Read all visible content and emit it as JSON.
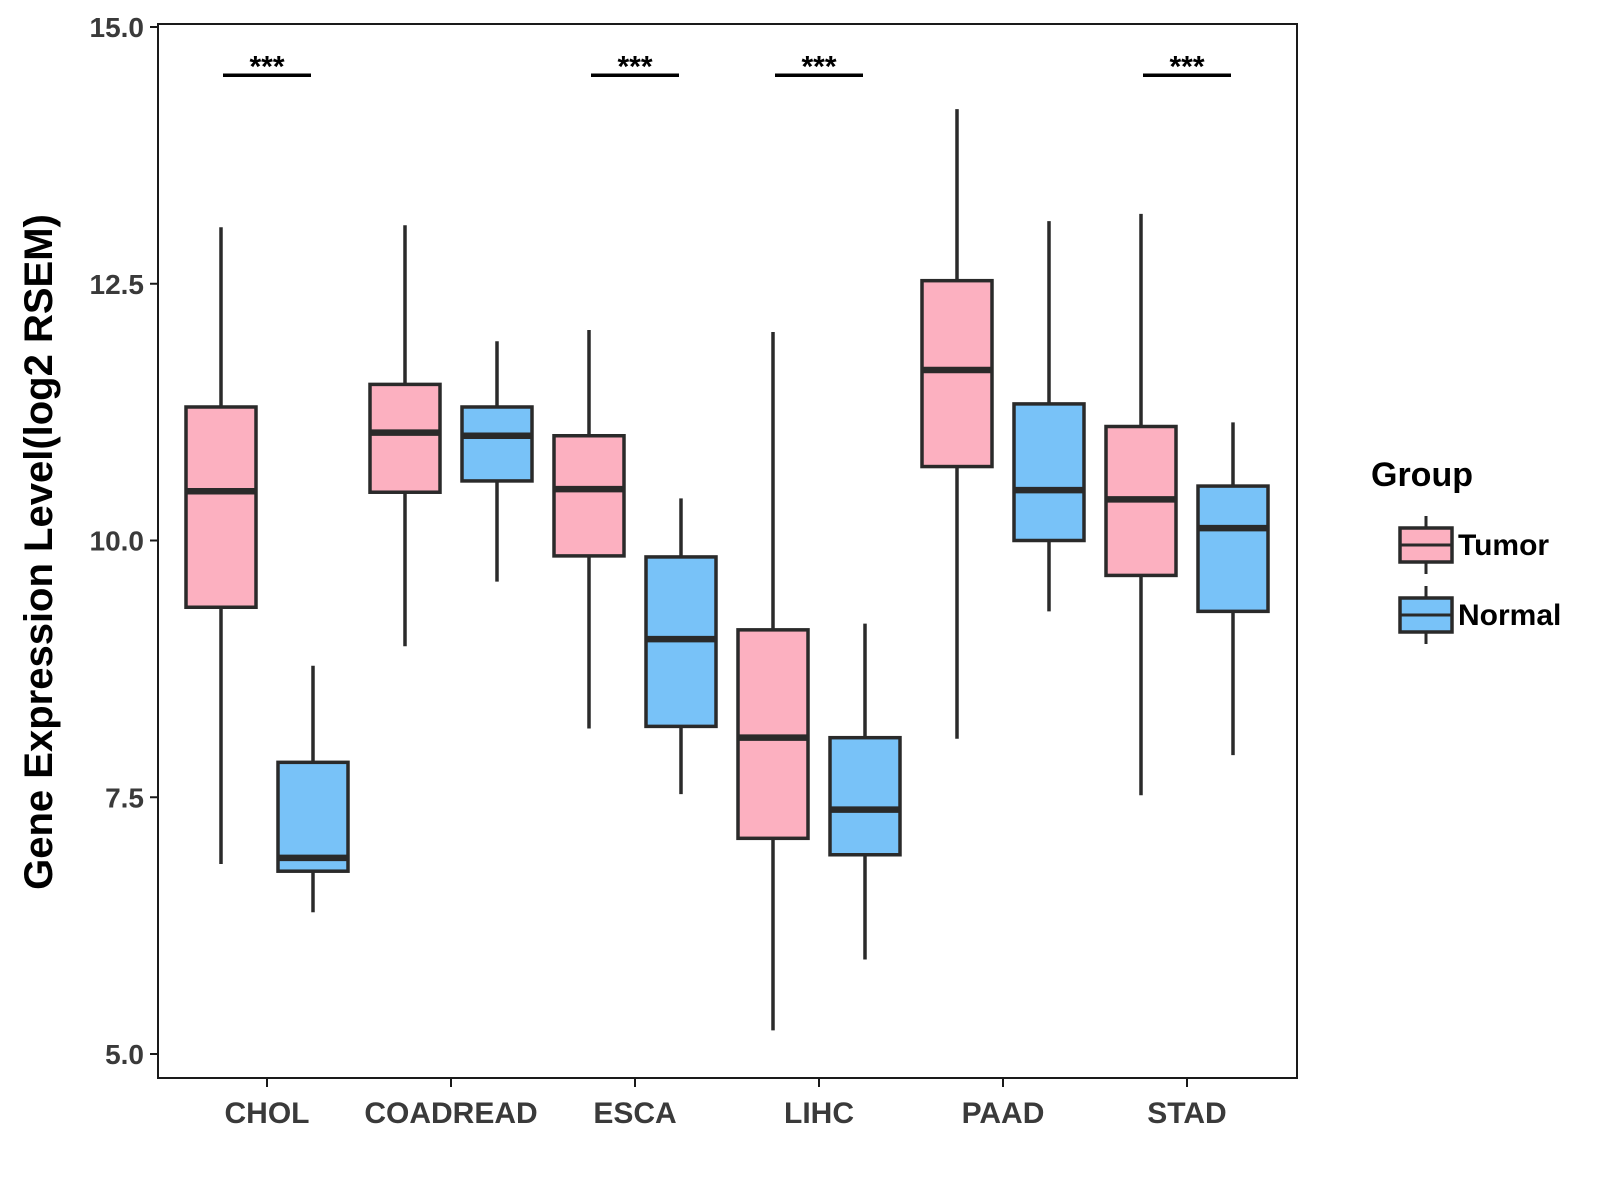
{
  "chart_data": {
    "type": "boxplot",
    "title": "",
    "xlabel": "",
    "ylabel": "Gene Expression Level(log2 RSEM)",
    "ylim": [
      4.8,
      15.25
    ],
    "yticks": [
      5.0,
      7.5,
      10.0,
      12.5,
      15.0
    ],
    "ytick_labels": [
      "5.0",
      "7.5",
      "10.0",
      "12.5",
      "15.0"
    ],
    "grid": false,
    "categories": [
      "CHOL",
      "COADREAD",
      "ESCA",
      "LIHC",
      "PAAD",
      "STAD"
    ],
    "legend": {
      "title": "Group",
      "position": "right",
      "entries": [
        {
          "name": "Tumor",
          "color": "#FCB0C0"
        },
        {
          "name": "Normal",
          "color": "#78C2F8"
        }
      ]
    },
    "series": [
      {
        "name": "Tumor",
        "color": "#FCB0C0",
        "boxes": [
          {
            "min": 6.85,
            "q1": 9.35,
            "median": 10.48,
            "q3": 11.3,
            "max": 13.05
          },
          {
            "min": 8.97,
            "q1": 10.47,
            "median": 11.05,
            "q3": 11.52,
            "max": 13.07
          },
          {
            "min": 8.17,
            "q1": 9.85,
            "median": 10.5,
            "q3": 11.02,
            "max": 12.05
          },
          {
            "min": 5.23,
            "q1": 7.1,
            "median": 8.08,
            "q3": 9.13,
            "max": 12.03
          },
          {
            "min": 8.07,
            "q1": 10.72,
            "median": 11.66,
            "q3": 12.53,
            "max": 14.2
          },
          {
            "min": 7.52,
            "q1": 9.66,
            "median": 10.4,
            "q3": 11.11,
            "max": 13.18
          }
        ]
      },
      {
        "name": "Normal",
        "color": "#78C2F8",
        "boxes": [
          {
            "min": 6.38,
            "q1": 6.78,
            "median": 6.91,
            "q3": 7.84,
            "max": 8.78
          },
          {
            "min": 9.6,
            "q1": 10.58,
            "median": 11.02,
            "q3": 11.3,
            "max": 11.94
          },
          {
            "min": 7.53,
            "q1": 8.19,
            "median": 9.04,
            "q3": 9.84,
            "max": 10.41
          },
          {
            "min": 5.92,
            "q1": 6.94,
            "median": 7.38,
            "q3": 8.08,
            "max": 9.19
          },
          {
            "min": 9.31,
            "q1": 10.0,
            "median": 10.49,
            "q3": 11.33,
            "max": 13.11
          },
          {
            "min": 7.91,
            "q1": 9.31,
            "median": 10.12,
            "q3": 10.53,
            "max": 11.15
          }
        ]
      }
    ],
    "significance": [
      {
        "category": "CHOL",
        "label": "***",
        "y": 14.53
      },
      {
        "category": "ESCA",
        "label": "***",
        "y": 14.53
      },
      {
        "category": "LIHC",
        "label": "***",
        "y": 14.53
      },
      {
        "category": "STAD",
        "label": "***",
        "y": 14.53
      }
    ]
  }
}
